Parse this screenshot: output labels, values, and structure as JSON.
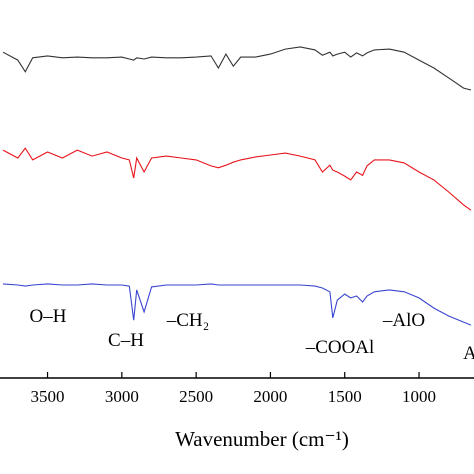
{
  "chart_data": {
    "type": "line",
    "x_label": "Wavenumber (cm⁻¹)",
    "x": [
      3800,
      3700,
      3650,
      3600,
      3500,
      3400,
      3300,
      3200,
      3100,
      3000,
      2950,
      2920,
      2900,
      2850,
      2800,
      2700,
      2600,
      2500,
      2400,
      2350,
      2300,
      2250,
      2200,
      2100,
      2000,
      1900,
      1800,
      1700,
      1650,
      1600,
      1580,
      1550,
      1500,
      1460,
      1420,
      1380,
      1350,
      1300,
      1200,
      1100,
      1000,
      900,
      800,
      700,
      650
    ],
    "xlim": [
      3820,
      630
    ],
    "xticks": [
      3500,
      3000,
      2500,
      2000,
      1500,
      1000
    ],
    "ylim": [
      0,
      100
    ],
    "series": [
      {
        "color": "#333333",
        "values": [
          86.2,
          84.1,
          81.0,
          84.7,
          85.2,
          84.7,
          84.9,
          84.7,
          84.7,
          84.9,
          84.4,
          84.1,
          84.7,
          84.4,
          84.9,
          84.7,
          84.7,
          84.9,
          85.2,
          82.0,
          85.7,
          82.5,
          84.9,
          84.9,
          85.7,
          87.0,
          87.6,
          86.8,
          85.4,
          86.2,
          85.2,
          85.7,
          86.2,
          84.9,
          86.0,
          85.2,
          86.0,
          86.8,
          87.0,
          86.2,
          84.1,
          82.0,
          79.4,
          76.7,
          76.2
        ]
      },
      {
        "color": "#e8141c",
        "values": [
          60.3,
          58.2,
          60.8,
          57.7,
          59.8,
          58.2,
          60.3,
          58.7,
          59.8,
          58.2,
          57.7,
          52.9,
          58.2,
          54.5,
          58.2,
          58.7,
          58.2,
          57.7,
          56.1,
          55.6,
          56.3,
          57.1,
          57.7,
          58.5,
          59.0,
          59.5,
          58.7,
          57.7,
          54.5,
          56.3,
          55.0,
          54.5,
          53.4,
          52.4,
          54.5,
          53.6,
          56.1,
          57.7,
          57.7,
          56.9,
          54.5,
          52.4,
          49.2,
          45.8,
          44.4
        ]
      },
      {
        "color": "#3a46d0",
        "values": [
          24.9,
          24.6,
          24.3,
          24.6,
          24.9,
          24.6,
          24.6,
          24.9,
          24.6,
          24.6,
          24.3,
          15.3,
          23.3,
          17.5,
          24.1,
          24.6,
          24.6,
          24.6,
          24.9,
          24.6,
          24.6,
          24.6,
          24.6,
          24.6,
          24.6,
          24.6,
          24.6,
          24.3,
          23.8,
          22.8,
          15.9,
          20.6,
          22.2,
          21.2,
          21.7,
          20.1,
          21.7,
          22.8,
          23.3,
          22.8,
          21.2,
          18.5,
          16.4,
          14.8,
          14.0
        ]
      }
    ],
    "annotations": [
      "O–H",
      "C–H",
      "–CH₂",
      "–COOAl",
      "–AlO",
      "A"
    ]
  }
}
